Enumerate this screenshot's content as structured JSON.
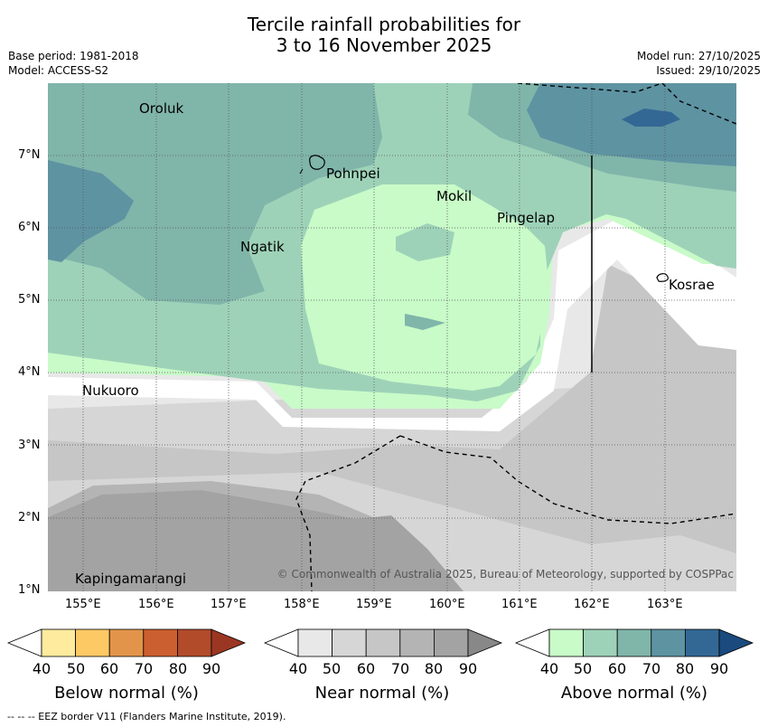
{
  "header": {
    "title_line1": "Tercile rainfall probabilities for",
    "title_line2": "3 to 16 November 2025",
    "base_period": "Base period: 1981-2018",
    "model": "Model: ACCESS-S2",
    "model_run": "Model run: 27/10/2025",
    "issued": "Issued: 29/10/2025"
  },
  "map": {
    "lat_labels": [
      "7°N",
      "6°N",
      "5°N",
      "4°N",
      "3°N",
      "2°N",
      "1°N"
    ],
    "lon_labels": [
      "155°E",
      "156°E",
      "157°E",
      "158°E",
      "159°E",
      "160°E",
      "161°E",
      "162°E",
      "163°E"
    ],
    "places": [
      "Oroluk",
      "Pohnpei",
      "Mokil",
      "Pingelap",
      "Ngatik",
      "Kosrae",
      "Nukuoro",
      "Kapingamarangi"
    ],
    "copyright": "© Commonwealth of Australia 2025, Bureau of Meteorology, supported by COSPPac"
  },
  "legends": [
    {
      "title": "Below normal (%)",
      "ticks": [
        "40",
        "50",
        "60",
        "70",
        "80",
        "90"
      ],
      "colors": [
        "#ffffff",
        "#feeb9e",
        "#fdc965",
        "#e2954a",
        "#cc5f30",
        "#b14b2a",
        "#9b3622"
      ]
    },
    {
      "title": "Near normal (%)",
      "ticks": [
        "40",
        "50",
        "60",
        "70",
        "80",
        "90"
      ],
      "colors": [
        "#ffffff",
        "#e8e8e8",
        "#d6d6d6",
        "#c6c6c6",
        "#b4b4b4",
        "#a3a3a3",
        "#888888"
      ]
    },
    {
      "title": "Above normal (%)",
      "ticks": [
        "40",
        "50",
        "60",
        "70",
        "80",
        "90"
      ],
      "colors": [
        "#ffffff",
        "#c8fbc8",
        "#9ed2b8",
        "#80b5aa",
        "#5e93a2",
        "#336895",
        "#1a4a7e"
      ]
    }
  ],
  "footer": {
    "eez_note": "--  --  -- EEZ border V11 (Flanders Marine Institute, 2019)."
  }
}
